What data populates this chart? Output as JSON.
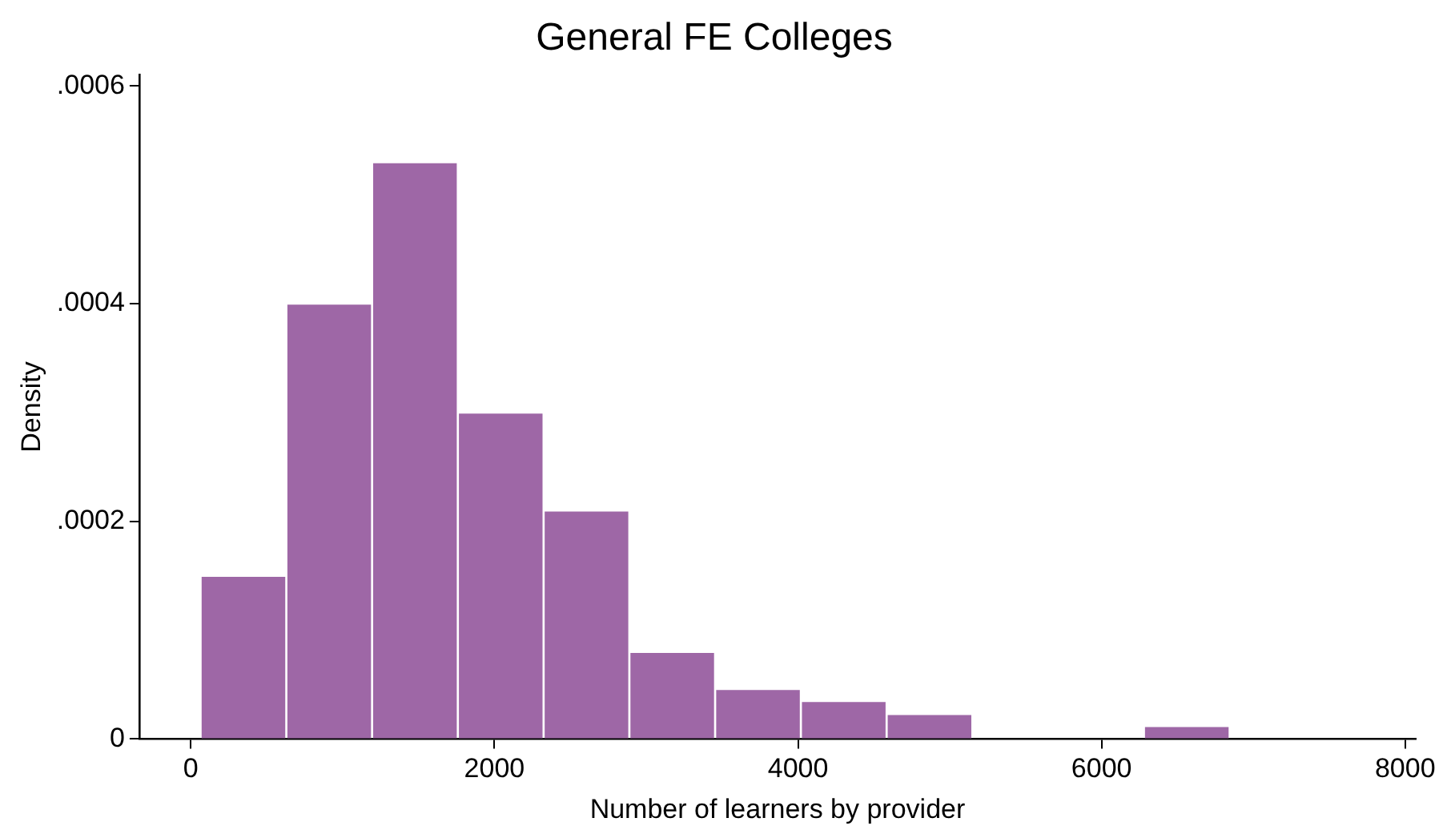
{
  "chart_data": {
    "type": "histogram",
    "title": "General FE Colleges",
    "xlabel": "Number of learners by provider",
    "ylabel": "Density",
    "bins": [
      64,
      629,
      1194,
      1759,
      2324,
      2889,
      3454,
      4019,
      4584,
      5149,
      5714,
      6279,
      6844
    ],
    "values": [
      0.00015,
      0.0004,
      0.00053,
      0.0003,
      0.00021,
      8e-05,
      4.6e-05,
      3.5e-05,
      2.3e-05,
      0,
      0,
      1.2e-05
    ],
    "color": "#9e67a6",
    "xlim": [
      -340,
      8070
    ],
    "xticks": [
      0,
      2000,
      4000,
      6000,
      8000
    ],
    "ylim": [
      0,
      0.00061
    ],
    "yticks": [
      {
        "value": 0,
        "label": "0"
      },
      {
        "value": 0.0002,
        "label": ".0002"
      },
      {
        "value": 0.0004,
        "label": ".0004"
      },
      {
        "value": 0.0006,
        "label": ".0006"
      }
    ],
    "grid": false,
    "legend": false
  }
}
